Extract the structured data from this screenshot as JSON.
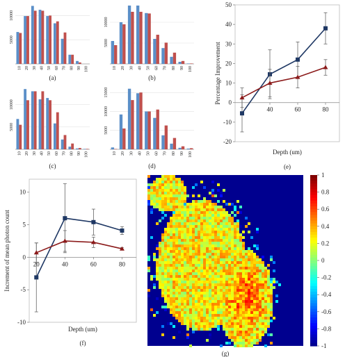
{
  "chart_data": [
    {
      "id": "a",
      "type": "bar",
      "caption": "(a)",
      "categories": [
        "10",
        "20",
        "30",
        "40",
        "50",
        "60",
        "70",
        "80",
        "90",
        "100"
      ],
      "series": [
        {
          "color": "#5b8fc8",
          "values": [
            6600,
            9900,
            12000,
            11200,
            9900,
            8400,
            5200,
            1900,
            600,
            0
          ]
        },
        {
          "color": "#c0504d",
          "values": [
            6400,
            9900,
            11000,
            11000,
            10000,
            8800,
            6500,
            1900,
            300,
            0
          ]
        }
      ],
      "yticks": [
        "5000",
        "10000"
      ],
      "ylim": [
        0,
        12500
      ]
    },
    {
      "id": "b",
      "type": "bar",
      "caption": "(b)",
      "categories": [
        "10",
        "20",
        "30",
        "40",
        "50",
        "60",
        "70",
        "80",
        "90",
        "100"
      ],
      "series": [
        {
          "color": "#5b8fc8",
          "values": [
            5500,
            10000,
            14000,
            14000,
            12200,
            6000,
            3800,
            1700,
            500,
            100
          ]
        },
        {
          "color": "#c0504d",
          "values": [
            4500,
            9500,
            12500,
            12500,
            12100,
            7000,
            5100,
            2700,
            700,
            100
          ]
        }
      ],
      "yticks": [
        "5000",
        "10000"
      ],
      "ylim": [
        0,
        14500
      ]
    },
    {
      "id": "c",
      "type": "bar",
      "caption": "(c)",
      "categories": [
        "10",
        "20",
        "30",
        "40",
        "50",
        "60",
        "70",
        "80",
        "90",
        "100"
      ],
      "series": [
        {
          "color": "#5b8fc8",
          "values": [
            6800,
            13500,
            13000,
            11200,
            11500,
            5800,
            2200,
            600,
            200,
            100
          ]
        },
        {
          "color": "#c0504d",
          "values": [
            5500,
            11000,
            13000,
            13000,
            11000,
            8300,
            3200,
            1300,
            300,
            100
          ]
        }
      ],
      "yticks": [
        "5000",
        "10000"
      ],
      "ylim": [
        0,
        14000
      ]
    },
    {
      "id": "d",
      "type": "bar",
      "caption": "(d)",
      "categories": [
        "10",
        "20",
        "30",
        "40",
        "50",
        "60",
        "70",
        "80",
        "90",
        "100"
      ],
      "series": [
        {
          "color": "#5b8fc8",
          "values": [
            500,
            9200,
            16000,
            14800,
            10000,
            8300,
            3700,
            1500,
            400,
            200
          ]
        },
        {
          "color": "#c0504d",
          "values": [
            100,
            5500,
            13000,
            15000,
            10000,
            10500,
            6300,
            3000,
            800,
            300
          ]
        }
      ],
      "yticks": [
        "5000",
        "10000",
        "15000"
      ],
      "ylim": [
        0,
        16500
      ]
    },
    {
      "id": "e",
      "type": "line",
      "caption": "(e)",
      "ylabel": "Percentage Improvement",
      "xlabel": "Depth (um)",
      "x": [
        20,
        40,
        60,
        80
      ],
      "xticks": [
        "40",
        "60",
        "80"
      ],
      "ylim": [
        -20,
        50
      ],
      "yticks": [
        "-20",
        "-10",
        "0",
        "10",
        "20",
        "30",
        "40",
        "50"
      ],
      "series": [
        {
          "color": "#1f3864",
          "marker": "square",
          "values": [
            -5.5,
            14.5,
            22,
            38
          ],
          "err": [
            9.5,
            12.5,
            9,
            8
          ]
        },
        {
          "color": "#8b1a1a",
          "marker": "triangle",
          "values": [
            2.5,
            10,
            13,
            18
          ],
          "err": [
            5,
            7,
            5.5,
            4
          ]
        }
      ]
    },
    {
      "id": "f",
      "type": "line",
      "caption": "(f)",
      "ylabel": "Increment of mean photon count",
      "xlabel": "Depth (um)",
      "x": [
        20,
        40,
        60,
        80
      ],
      "xticks": [
        "20",
        "40",
        "60",
        "80"
      ],
      "ylim": [
        -10,
        12
      ],
      "yticks": [
        "-10",
        "-5",
        "0",
        "5",
        "10"
      ],
      "series": [
        {
          "color": "#1f3864",
          "marker": "square",
          "values": [
            -3.1,
            6,
            5.4,
            4.1
          ],
          "err": [
            5.3,
            5.3,
            2,
            0.6
          ]
        },
        {
          "color": "#8b1a1a",
          "marker": "triangle",
          "values": [
            0.7,
            2.5,
            2.3,
            1.3
          ],
          "err": [
            1.5,
            1.6,
            0.8,
            0.2
          ]
        }
      ]
    },
    {
      "id": "g",
      "type": "heatmap",
      "caption": "(g)",
      "colorbar": {
        "min": -1,
        "max": 1,
        "ticks": [
          "1",
          "0.8",
          "0.6",
          "0.4",
          "0.2",
          "0",
          "-0.2",
          "-0.4",
          "-0.6",
          "-0.8",
          "-1"
        ]
      }
    }
  ]
}
